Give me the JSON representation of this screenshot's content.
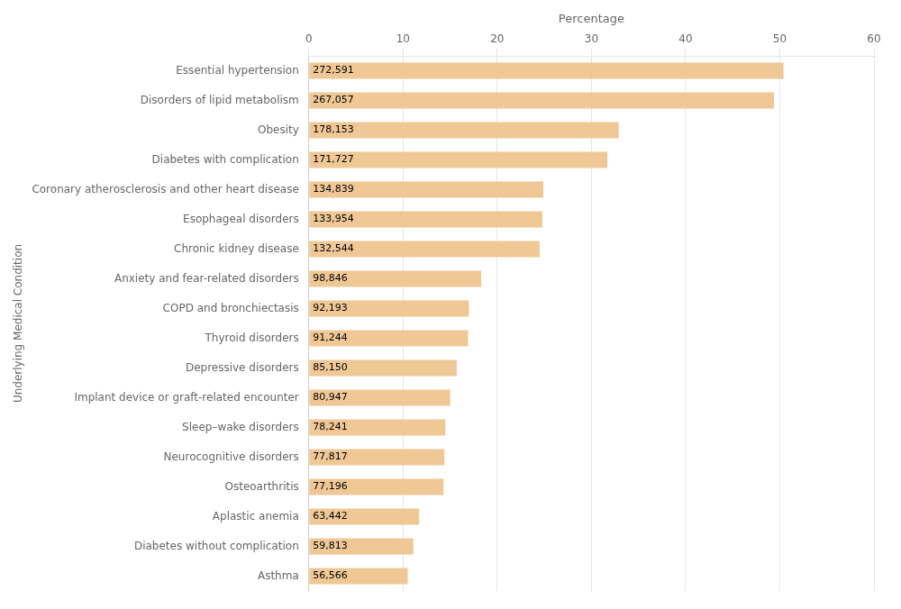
{
  "chart_data": {
    "type": "bar",
    "orientation": "horizontal",
    "xlabel": "Percentage",
    "ylabel": "Underlying Medical Condition",
    "categories": [
      "Asthma",
      "Diabetes without complication",
      "Aplastic anemia",
      "Osteoarthritis",
      "Neurocognitive disorders",
      "Sleep–wake disorders",
      "Implant device or graft-related encounter",
      "Depressive disorders",
      "Thyroid disorders",
      "COPD and bronchiectasis",
      "Anxiety and fear-related disorders",
      "Chronic kidney disease",
      "Esophageal disorders",
      "Coronary atherosclerosis and other heart disease",
      "Diabetes with complication",
      "Obesity",
      "Disorders of lipid metabolism",
      "Essential hypertension"
    ],
    "values": [
      10.5,
      11.1,
      11.7,
      14.3,
      14.4,
      14.5,
      15.0,
      15.7,
      16.9,
      17.0,
      18.3,
      24.5,
      24.8,
      24.9,
      31.7,
      32.9,
      49.4,
      50.4
    ],
    "counts": [
      {
        "value": 56566,
        "label": "56,566"
      },
      {
        "value": 59813,
        "label": "59,813"
      },
      {
        "value": 63442,
        "label": "63,442"
      },
      {
        "value": 77196,
        "label": "77,196"
      },
      {
        "value": 77817,
        "label": "77,817"
      },
      {
        "value": 78241,
        "label": "78,241"
      },
      {
        "value": 80947,
        "label": "80,947"
      },
      {
        "value": 85150,
        "label": "85,150"
      },
      {
        "value": 91244,
        "label": "91,244"
      },
      {
        "value": 92193,
        "label": "92,193"
      },
      {
        "value": 98846,
        "label": "98,846"
      },
      {
        "value": 132544,
        "label": "132,544"
      },
      {
        "value": 133954,
        "label": "133,954"
      },
      {
        "value": 134839,
        "label": "134,839"
      },
      {
        "value": 171727,
        "label": "171,727"
      },
      {
        "value": 178153,
        "label": "178,153"
      },
      {
        "value": 267057,
        "label": "267,057"
      },
      {
        "value": 272591,
        "label": "272,591"
      }
    ],
    "color": "#f0c896",
    "xlim": [
      0,
      60
    ],
    "xticks": [
      0,
      10,
      20,
      30,
      40,
      50,
      60
    ],
    "grid": true
  }
}
